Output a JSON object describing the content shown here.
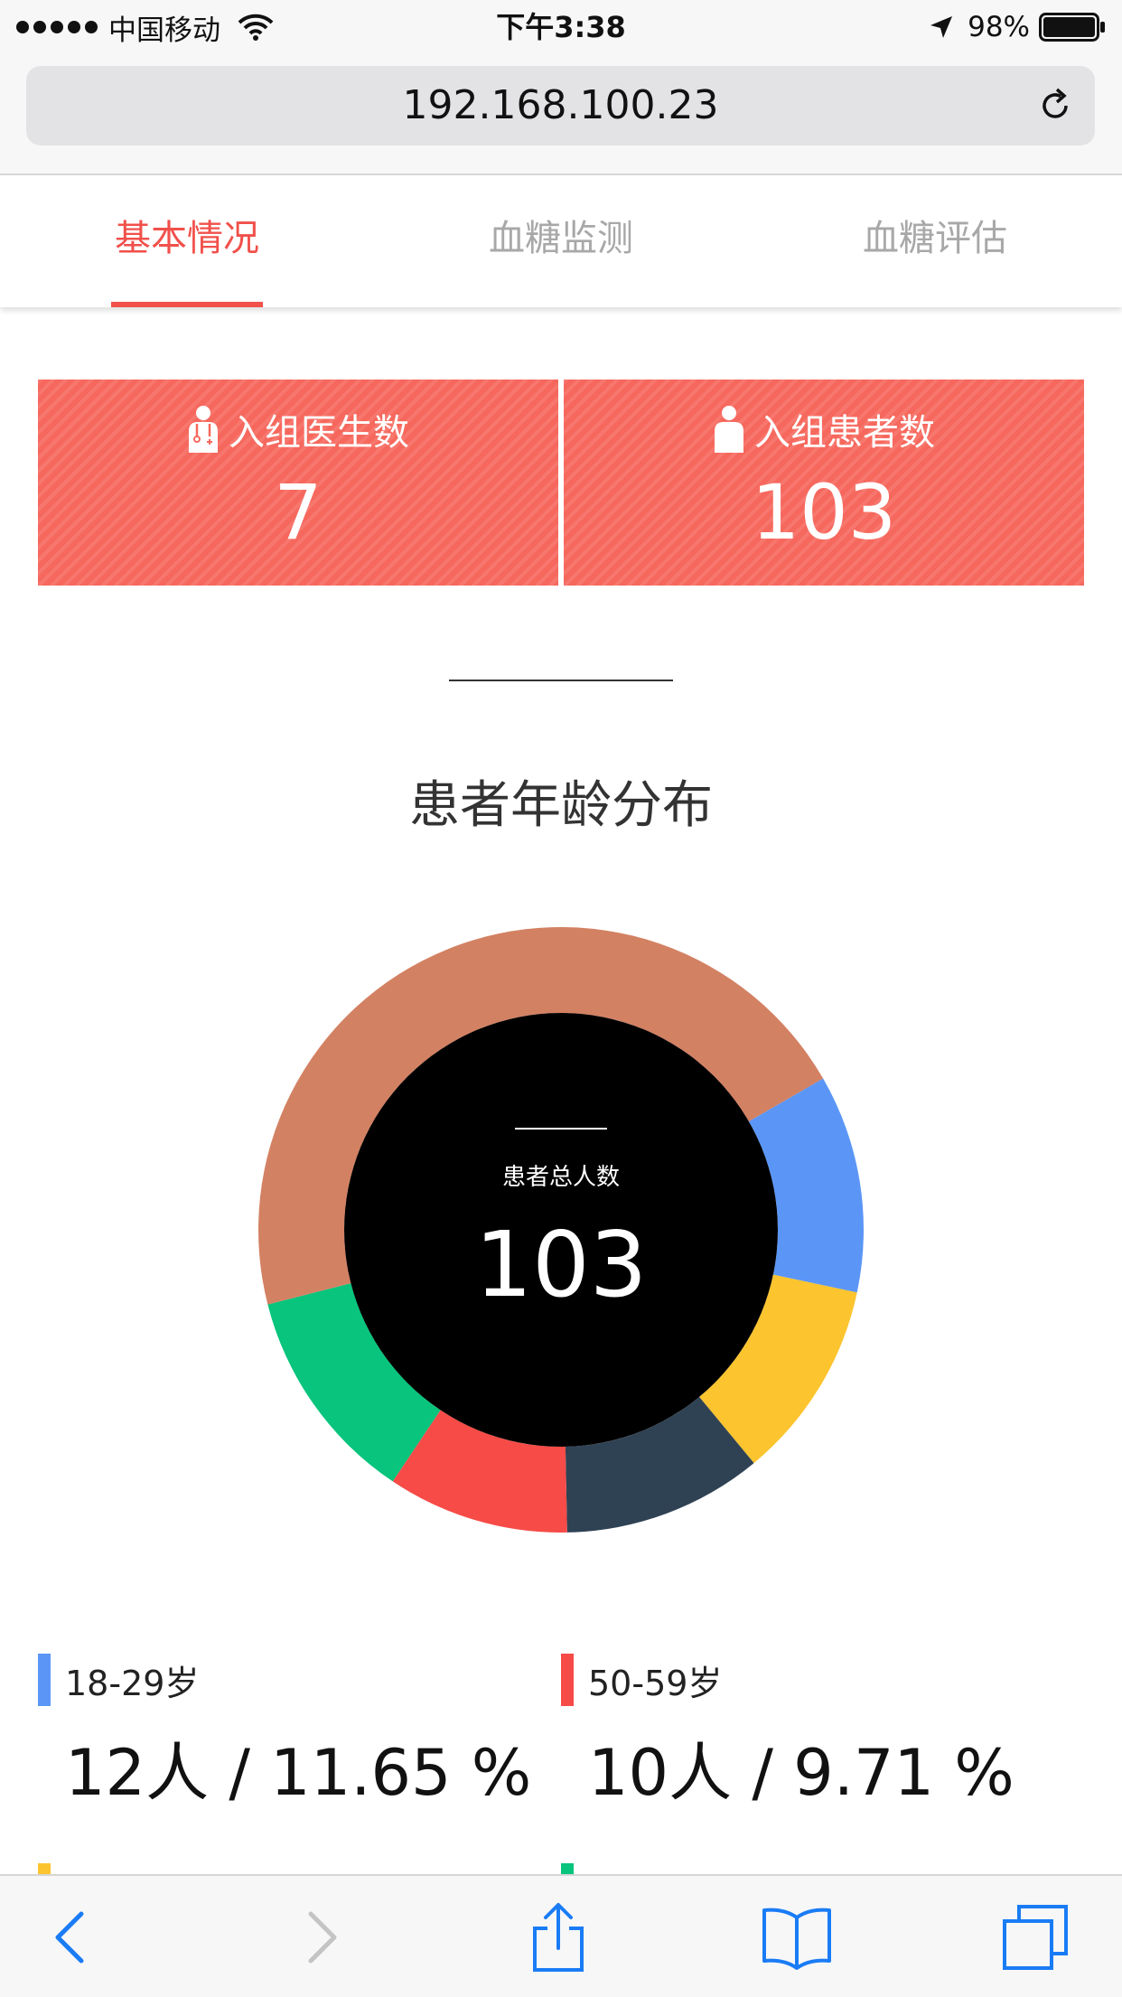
{
  "status_bar": {
    "carrier": "中国移动",
    "time": "下午3:38",
    "battery": "98%"
  },
  "browser": {
    "url": "192.168.100.23"
  },
  "tabs": [
    {
      "label": "基本情况",
      "active": true
    },
    {
      "label": "血糖监测",
      "active": false
    },
    {
      "label": "血糖评估",
      "active": false
    }
  ],
  "stats": {
    "doctors": {
      "label": "入组医生数",
      "value": "7"
    },
    "patients": {
      "label": "入组患者数",
      "value": "103"
    }
  },
  "section": {
    "title": "患者年龄分布"
  },
  "donut_center": {
    "label": "患者总人数",
    "value": "103"
  },
  "chart_data": {
    "type": "pie",
    "title": "患者年龄分布",
    "slices": [
      {
        "name": "18-29岁",
        "value": 12,
        "percent": 11.65,
        "color": "#5b96f6"
      },
      {
        "name": "",
        "value": 11,
        "color": "#fcc42e"
      },
      {
        "name": "",
        "value": 11,
        "color": "#2f4254"
      },
      {
        "name": "50-59岁",
        "value": 10,
        "percent": 9.71,
        "color": "#f64b47"
      },
      {
        "name": "",
        "value": 12,
        "color": "#08c47c"
      },
      {
        "name": "",
        "value": 47,
        "color": "#d38163"
      }
    ]
  },
  "legend": [
    {
      "range": "18-29岁",
      "count": "12人 / 11.65 %",
      "color": "#5b96f6"
    },
    {
      "range": "50-59岁",
      "count": "10人 / 9.71 %",
      "color": "#f64b47"
    }
  ],
  "colors": {
    "accent": "#f1504b",
    "card": "#f6685d",
    "link_blue": "#1a7cf5"
  }
}
